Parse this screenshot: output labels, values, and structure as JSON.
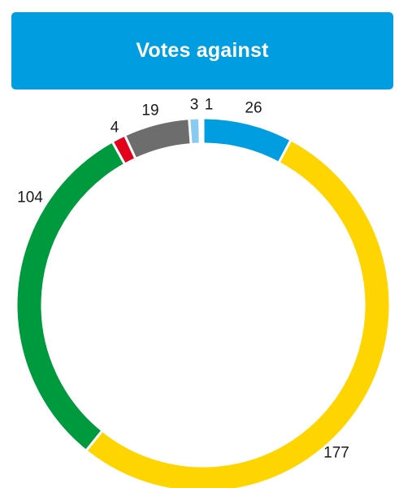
{
  "header": {
    "title": "Votes against"
  },
  "chart_data": {
    "type": "pie",
    "style": "donut",
    "start": "top",
    "direction": "clockwise",
    "title": "Votes against",
    "slices": [
      {
        "value": 26,
        "label": "26",
        "color": "#009de0"
      },
      {
        "value": 177,
        "label": "177",
        "color": "#ffd500"
      },
      {
        "value": 104,
        "label": "104",
        "color": "#009a3e"
      },
      {
        "value": 4,
        "label": "4",
        "color": "#e2001a"
      },
      {
        "value": 19,
        "label": "19",
        "color": "#6d6d6d"
      },
      {
        "value": 3,
        "label": "3",
        "color": "#88cbf0"
      },
      {
        "value": 1,
        "label": "1",
        "color": "#ffffff"
      }
    ]
  }
}
